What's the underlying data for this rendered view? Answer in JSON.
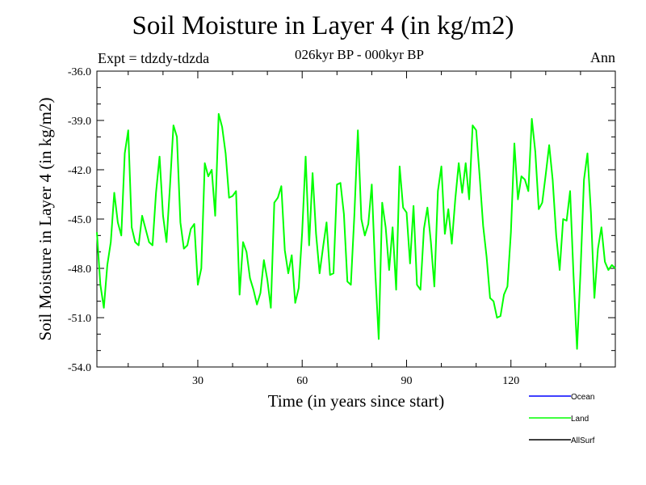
{
  "chart_data": {
    "type": "line",
    "title": "Soil Moisture in Layer 4 (in kg/m2)",
    "subtitle": "026kyr BP - 000kyr BP",
    "experiment": "Expt = tdzdy-tdzda",
    "season": "Ann",
    "xlabel": "Time (in years since start)",
    "ylabel": "Soil Moisture in Layer 4 (in kg/m2)",
    "xlim": [
      1,
      150
    ],
    "ylim": [
      -54.0,
      -36.0
    ],
    "xticks": [
      30,
      60,
      90,
      120
    ],
    "xtick_labels": [
      "30",
      "60",
      "90",
      "120"
    ],
    "yticks": [
      -54.0,
      -51.0,
      -48.0,
      -45.0,
      -42.0,
      -39.0,
      -36.0
    ],
    "ytick_labels": [
      "-54.0",
      "-51.0",
      "-48.0",
      "-45.0",
      "-42.0",
      "-39.0",
      "-36.0"
    ],
    "legend": [
      {
        "name": "Ocean",
        "color": "#0000ff"
      },
      {
        "name": "Land",
        "color": "#00ff00"
      },
      {
        "name": "AllSurf",
        "color": "#000000"
      }
    ],
    "series": [
      {
        "name": "Land",
        "color": "#00ff00",
        "x": [
          1,
          2,
          3,
          4,
          5,
          6,
          7,
          8,
          9,
          10,
          11,
          12,
          13,
          14,
          15,
          16,
          17,
          18,
          19,
          20,
          21,
          22,
          23,
          24,
          25,
          26,
          27,
          28,
          29,
          30,
          31,
          32,
          33,
          34,
          35,
          36,
          37,
          38,
          39,
          40,
          41,
          42,
          43,
          44,
          45,
          46,
          47,
          48,
          49,
          50,
          51,
          52,
          53,
          54,
          55,
          56,
          57,
          58,
          59,
          60,
          61,
          62,
          63,
          64,
          65,
          66,
          67,
          68,
          69,
          70,
          71,
          72,
          73,
          74,
          75,
          76,
          77,
          78,
          79,
          80,
          81,
          82,
          83,
          84,
          85,
          86,
          87,
          88,
          89,
          90,
          91,
          92,
          93,
          94,
          95,
          96,
          97,
          98,
          99,
          100,
          101,
          102,
          103,
          104,
          105,
          106,
          107,
          108,
          109,
          110,
          111,
          112,
          113,
          114,
          115,
          116,
          117,
          118,
          119,
          120,
          121,
          122,
          123,
          124,
          125,
          126,
          127,
          128,
          129,
          130,
          131,
          132,
          133,
          134,
          135,
          136,
          137,
          138,
          139,
          140,
          141,
          142,
          143,
          144,
          145,
          146,
          147,
          148,
          149,
          150
        ],
        "values": [
          -45.8,
          -49.0,
          -50.4,
          -47.8,
          -46.4,
          -43.4,
          -45.2,
          -46.0,
          -41.0,
          -39.6,
          -45.5,
          -46.4,
          -46.6,
          -44.8,
          -45.6,
          -46.4,
          -46.6,
          -43.4,
          -41.2,
          -44.8,
          -46.4,
          -43.0,
          -39.3,
          -40.0,
          -45.2,
          -46.8,
          -46.6,
          -45.6,
          -45.3,
          -49.0,
          -48.0,
          -41.6,
          -42.4,
          -42.0,
          -44.8,
          -38.6,
          -39.4,
          -41.0,
          -43.7,
          -43.6,
          -43.3,
          -49.6,
          -46.4,
          -47.0,
          -48.6,
          -49.3,
          -50.2,
          -49.5,
          -47.5,
          -48.7,
          -50.4,
          -44.0,
          -43.7,
          -43.0,
          -46.9,
          -48.3,
          -47.2,
          -50.1,
          -49.2,
          -45.8,
          -41.2,
          -46.6,
          -42.2,
          -45.9,
          -48.3,
          -46.7,
          -45.2,
          -48.4,
          -48.3,
          -42.9,
          -42.8,
          -44.7,
          -48.8,
          -49.0,
          -44.8,
          -39.6,
          -45.0,
          -46.0,
          -45.3,
          -42.9,
          -48.2,
          -52.3,
          -44.0,
          -45.5,
          -48.1,
          -45.5,
          -49.3,
          -41.8,
          -44.3,
          -44.6,
          -47.7,
          -44.2,
          -49.0,
          -49.3,
          -45.6,
          -44.3,
          -46.4,
          -49.1,
          -43.3,
          -41.8,
          -45.9,
          -44.4,
          -46.5,
          -43.8,
          -41.6,
          -43.4,
          -41.6,
          -43.8,
          -39.3,
          -39.6,
          -42.4,
          -45.4,
          -47.3,
          -49.8,
          -50.0,
          -51.0,
          -50.9,
          -49.6,
          -49.1,
          -45.8,
          -40.4,
          -43.8,
          -42.4,
          -42.6,
          -43.3,
          -38.9,
          -40.9,
          -44.4,
          -44.0,
          -42.3,
          -40.5,
          -42.6,
          -46.0,
          -48.1,
          -45.0,
          -45.1,
          -43.3,
          -48.5,
          -52.9,
          -48.2,
          -42.6,
          -41.0,
          -44.6,
          -49.8,
          -46.8,
          -45.5,
          -47.6,
          -48.1,
          -47.8,
          -48.0
        ]
      }
    ]
  }
}
